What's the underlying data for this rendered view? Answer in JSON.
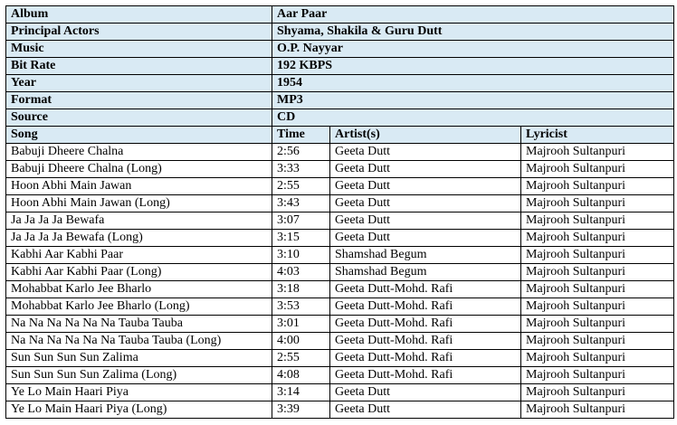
{
  "album_info": [
    {
      "label": "Album",
      "value": "Aar Paar"
    },
    {
      "label": "Principal Actors",
      "value": "Shyama, Shakila & Guru Dutt"
    },
    {
      "label": "Music",
      "value": "O.P. Nayyar"
    },
    {
      "label": "Bit Rate",
      "value": "192 KBPS"
    },
    {
      "label": "Year",
      "value": "1954"
    },
    {
      "label": "Format",
      "value": "MP3"
    },
    {
      "label": "Source",
      "value": "CD"
    }
  ],
  "song_table": {
    "headers": [
      "Song",
      "Time",
      "Artist(s)",
      "Lyricist"
    ],
    "rows": [
      [
        "Babuji Dheere Chalna",
        "2:56",
        "Geeta Dutt",
        "Majrooh Sultanpuri"
      ],
      [
        "Babuji Dheere Chalna (Long)",
        "3:33",
        "Geeta Dutt",
        "Majrooh Sultanpuri"
      ],
      [
        "Hoon Abhi Main Jawan",
        "2:55",
        "Geeta Dutt",
        "Majrooh Sultanpuri"
      ],
      [
        "Hoon Abhi Main Jawan (Long)",
        "3:43",
        "Geeta Dutt",
        "Majrooh Sultanpuri"
      ],
      [
        "Ja Ja Ja Ja Bewafa",
        "3:07",
        "Geeta Dutt",
        "Majrooh Sultanpuri"
      ],
      [
        "Ja Ja Ja Ja Bewafa (Long)",
        "3:15",
        "Geeta Dutt",
        "Majrooh Sultanpuri"
      ],
      [
        "Kabhi Aar Kabhi Paar",
        "3:10",
        "Shamshad Begum",
        "Majrooh Sultanpuri"
      ],
      [
        "Kabhi Aar Kabhi Paar (Long)",
        "4:03",
        "Shamshad Begum",
        "Majrooh Sultanpuri"
      ],
      [
        "Mohabbat Karlo Jee Bharlo",
        "3:18",
        "Geeta Dutt-Mohd. Rafi",
        "Majrooh Sultanpuri"
      ],
      [
        "Mohabbat Karlo Jee Bharlo (Long)",
        "3:53",
        "Geeta Dutt-Mohd. Rafi",
        "Majrooh Sultanpuri"
      ],
      [
        "Na Na Na Na Na Na Tauba Tauba",
        "3:01",
        "Geeta Dutt-Mohd. Rafi",
        "Majrooh Sultanpuri"
      ],
      [
        "Na Na Na Na Na Na Tauba Tauba (Long)",
        "4:00",
        "Geeta Dutt-Mohd. Rafi",
        "Majrooh Sultanpuri"
      ],
      [
        "Sun Sun Sun Sun Zalima",
        "2:55",
        "Geeta Dutt-Mohd. Rafi",
        "Majrooh Sultanpuri"
      ],
      [
        "Sun Sun Sun Sun Zalima (Long)",
        "4:08",
        "Geeta Dutt-Mohd. Rafi",
        "Majrooh Sultanpuri"
      ],
      [
        "Ye Lo Main Haari Piya",
        "3:14",
        "Geeta Dutt",
        "Majrooh Sultanpuri"
      ],
      [
        "Ye Lo Main Haari Piya (Long)",
        "3:39",
        "Geeta Dutt",
        "Majrooh Sultanpuri"
      ]
    ]
  },
  "colors": {
    "header_background": "#d9eaf4",
    "border": "#000000"
  }
}
